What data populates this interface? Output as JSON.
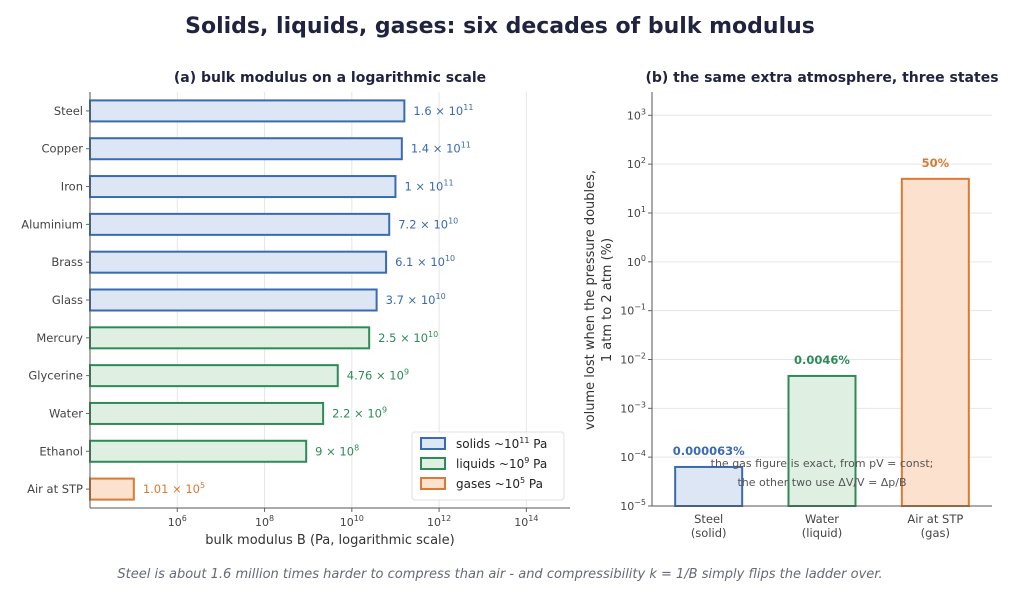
{
  "title": "Solids, liquids, gases: six decades of bulk modulus",
  "footer": "Steel is about 1.6 million times harder to compress than air - and compressibility k = 1/B simply flips the ladder over.",
  "colors": {
    "solid_edge": "#3a6ab0",
    "solid_fill": "#dce6f5",
    "liquid_edge": "#2e8b57",
    "liquid_fill": "#dff0e2",
    "gas_edge": "#d97a35",
    "gas_fill": "#fde1cf"
  },
  "chart_data": [
    {
      "type": "bar",
      "orientation": "horizontal",
      "title": "(a) bulk modulus on a logarithmic scale",
      "xlabel": "bulk modulus B   (Pa, logarithmic scale)",
      "xscale": "log",
      "xlim": [
        10000.0,
        1000000000000000.0
      ],
      "xticks": [
        {
          "value": 1000000.0,
          "base": "10",
          "exp": "6"
        },
        {
          "value": 100000000.0,
          "base": "10",
          "exp": "8"
        },
        {
          "value": 10000000000.0,
          "base": "10",
          "exp": "10"
        },
        {
          "value": 1000000000000.0,
          "base": "10",
          "exp": "12"
        },
        {
          "value": 100000000000000.0,
          "base": "10",
          "exp": "14"
        }
      ],
      "grid": "vertical",
      "legend_position": "bottom-right",
      "legend": [
        {
          "group": "solid",
          "label": "solids",
          "approx": "~10",
          "exp": "11",
          "unit": "Pa"
        },
        {
          "group": "liquid",
          "label": "liquids",
          "approx": "~10",
          "exp": "9",
          "unit": "Pa"
        },
        {
          "group": "gas",
          "label": "gases",
          "approx": "~10",
          "exp": "5",
          "unit": "Pa"
        }
      ],
      "bars": [
        {
          "category": "Steel",
          "value": 160000000000.0,
          "group": "solid",
          "mant": "1.6",
          "exp": "11"
        },
        {
          "category": "Copper",
          "value": 140000000000.0,
          "group": "solid",
          "mant": "1.4",
          "exp": "11"
        },
        {
          "category": "Iron",
          "value": 100000000000.0,
          "group": "solid",
          "mant": "1",
          "exp": "11"
        },
        {
          "category": "Aluminium",
          "value": 72000000000.0,
          "group": "solid",
          "mant": "7.2",
          "exp": "10"
        },
        {
          "category": "Brass",
          "value": 61000000000.0,
          "group": "solid",
          "mant": "6.1",
          "exp": "10"
        },
        {
          "category": "Glass",
          "value": 37000000000.0,
          "group": "solid",
          "mant": "3.7",
          "exp": "10"
        },
        {
          "category": "Mercury",
          "value": 25000000000.0,
          "group": "liquid",
          "mant": "2.5",
          "exp": "10"
        },
        {
          "category": "Glycerine",
          "value": 4760000000.0,
          "group": "liquid",
          "mant": "4.76",
          "exp": "9"
        },
        {
          "category": "Water",
          "value": 2200000000.0,
          "group": "liquid",
          "mant": "2.2",
          "exp": "9"
        },
        {
          "category": "Ethanol",
          "value": 900000000.0,
          "group": "liquid",
          "mant": "9",
          "exp": "8"
        },
        {
          "category": "Air at STP",
          "value": 101000.0,
          "group": "gas",
          "mant": "1.01",
          "exp": "5"
        }
      ]
    },
    {
      "type": "bar",
      "title": "(b) the same extra atmosphere, three states",
      "ylabel_line1": "volume lost when the pressure doubles,",
      "ylabel_line2": "1 atm to 2 atm   (%)",
      "yscale": "log",
      "ylim": [
        1e-05,
        3000.0
      ],
      "yticks": [
        {
          "value": 1e-05,
          "exp": "−5"
        },
        {
          "value": 0.0001,
          "exp": "−4"
        },
        {
          "value": 0.001,
          "exp": "−3"
        },
        {
          "value": 0.01,
          "exp": "−2"
        },
        {
          "value": 0.1,
          "exp": "−1"
        },
        {
          "value": 1,
          "exp": "0"
        },
        {
          "value": 10,
          "exp": "1"
        },
        {
          "value": 100,
          "exp": "2"
        },
        {
          "value": 1000,
          "exp": "3"
        }
      ],
      "grid": "horizontal",
      "bars": [
        {
          "name": "Steel",
          "state": "(solid)",
          "value": 6.3e-05,
          "label": "0.000063%",
          "group": "solid"
        },
        {
          "name": "Water",
          "state": "(liquid)",
          "value": 0.0046,
          "label": "0.0046%",
          "group": "liquid"
        },
        {
          "name": "Air at STP",
          "state": "(gas)",
          "value": 50,
          "label": "50%",
          "group": "gas"
        }
      ],
      "annotation_line1": "the gas figure is exact, from pV =  const;",
      "annotation_line2": "the other two use ΔV/V = Δp/B"
    }
  ]
}
